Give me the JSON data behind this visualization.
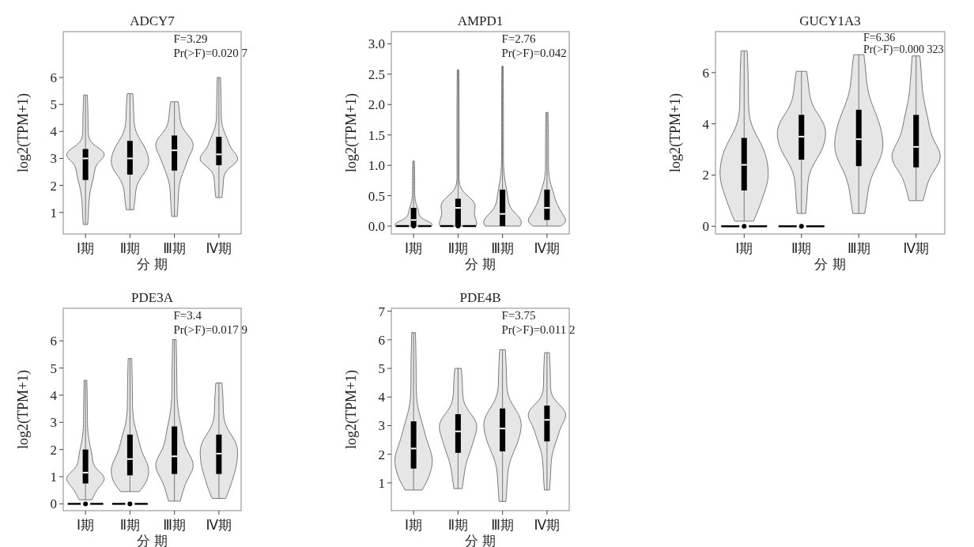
{
  "chart_data": [
    {
      "type": "box",
      "title": "ADCY7",
      "xlabel": "分 期",
      "ylabel": "log2(TPM+1)",
      "categories": [
        "Ⅰ期",
        "Ⅱ期",
        "Ⅲ期",
        "Ⅳ期"
      ],
      "ylim": [
        0.2,
        7.7
      ],
      "yticks": [
        1,
        2,
        3,
        4,
        5,
        6
      ],
      "annotations": [
        "F=3.29",
        "Pr(>F)=0.020 7"
      ],
      "series": [
        {
          "color": "#000000",
          "boxes": [
            {
              "low": 0.55,
              "q1": 2.2,
              "median": 3.0,
              "q3": 3.35,
              "high": 5.35
            },
            {
              "low": 1.1,
              "q1": 2.4,
              "median": 3.0,
              "q3": 3.65,
              "high": 5.4
            },
            {
              "low": 0.85,
              "q1": 2.55,
              "median": 3.3,
              "q3": 3.85,
              "high": 5.1
            },
            {
              "low": 1.55,
              "q1": 2.75,
              "median": 3.15,
              "q3": 3.8,
              "high": 6.0
            }
          ]
        }
      ]
    },
    {
      "type": "box",
      "title": "AMPD1",
      "xlabel": "分 期",
      "ylabel": "log2(TPM+1)",
      "categories": [
        "Ⅰ期",
        "Ⅱ期",
        "Ⅲ期",
        "Ⅳ期"
      ],
      "ylim": [
        -0.13,
        3.2
      ],
      "yticks": [
        {
          "value": 0,
          "label": "0.0"
        },
        {
          "value": 0.5,
          "label": "0.5"
        },
        {
          "value": 1,
          "label": "1.0"
        },
        {
          "value": 1.5,
          "label": "1.5"
        },
        {
          "value": 2,
          "label": "2.0"
        },
        {
          "value": 2.5,
          "label": "2.5"
        },
        {
          "value": 3,
          "label": "3.0"
        }
      ],
      "annotations": [
        "F=2.76",
        "Pr(>F)=0.042"
      ],
      "series": [
        {
          "color": "#000000",
          "boxes": [
            {
              "low": 0,
              "q1": 0,
              "median": 0.1,
              "q3": 0.3,
              "high": 1.07,
              "outliers": [
                0
              ]
            },
            {
              "low": 0,
              "q1": 0,
              "median": 0.3,
              "q3": 0.45,
              "high": 2.57,
              "outliers": [
                0
              ]
            },
            {
              "low": 0,
              "q1": 0,
              "median": 0.2,
              "q3": 0.6,
              "high": 2.63
            },
            {
              "low": 0,
              "q1": 0.1,
              "median": 0.3,
              "q3": 0.6,
              "high": 1.87
            }
          ]
        }
      ]
    },
    {
      "type": "box",
      "title": "GUCY1A3",
      "xlabel": "分 期",
      "ylabel": "log2(TPM+1)",
      "categories": [
        "Ⅰ期",
        "Ⅱ期",
        "Ⅲ期",
        "Ⅳ期"
      ],
      "ylim": [
        -0.3,
        7.6
      ],
      "yticks": [
        0,
        2,
        4,
        6
      ],
      "annotations": [
        "F=6.36",
        "Pr(>F)=0.000 323"
      ],
      "series": [
        {
          "color": "#000000",
          "boxes": [
            {
              "low": 0.2,
              "q1": 1.4,
              "median": 2.4,
              "q3": 3.45,
              "high": 6.85,
              "outliers": [
                0
              ]
            },
            {
              "low": 0.5,
              "q1": 2.6,
              "median": 3.5,
              "q3": 4.35,
              "high": 6.05,
              "outliers": [
                0
              ]
            },
            {
              "low": 0.5,
              "q1": 2.35,
              "median": 3.4,
              "q3": 4.55,
              "high": 6.7
            },
            {
              "low": 1.0,
              "q1": 2.3,
              "median": 3.1,
              "q3": 4.35,
              "high": 6.65
            }
          ]
        }
      ]
    },
    {
      "type": "box",
      "title": "PDE3A",
      "xlabel": "分 期",
      "ylabel": "log2(TPM+1)",
      "categories": [
        "Ⅰ期",
        "Ⅱ期",
        "Ⅲ期",
        "Ⅳ期"
      ],
      "ylim": [
        -0.25,
        7.2
      ],
      "yticks": [
        0,
        1,
        2,
        3,
        4,
        5,
        6
      ],
      "annotations": [
        "F=3.4",
        "Pr(>F)=0.017 9"
      ],
      "series": [
        {
          "color": "#000000",
          "boxes": [
            {
              "low": 0.15,
              "q1": 0.75,
              "median": 1.15,
              "q3": 2.0,
              "high": 4.55,
              "outliers": [
                0
              ]
            },
            {
              "low": 0.45,
              "q1": 1.05,
              "median": 1.65,
              "q3": 2.55,
              "high": 5.35,
              "outliers": [
                0
              ]
            },
            {
              "low": 0.1,
              "q1": 1.1,
              "median": 1.75,
              "q3": 2.85,
              "high": 6.05
            },
            {
              "low": 0.2,
              "q1": 1.1,
              "median": 1.85,
              "q3": 2.55,
              "high": 4.45
            }
          ]
        }
      ]
    },
    {
      "type": "box",
      "title": "PDE4B",
      "xlabel": "分 期",
      "ylabel": "log2(TPM+1)",
      "categories": [
        "Ⅰ期",
        "Ⅱ期",
        "Ⅲ期",
        "Ⅳ期"
      ],
      "ylim": [
        0.03,
        7.1
      ],
      "yticks": [
        1,
        2,
        3,
        4,
        5,
        6,
        7
      ],
      "annotations": [
        "F=3.75",
        "Pr(>F)=0.011 2"
      ],
      "series": [
        {
          "color": "#000000",
          "boxes": [
            {
              "low": 0.75,
              "q1": 1.5,
              "median": 2.2,
              "q3": 3.15,
              "high": 6.25
            },
            {
              "low": 0.8,
              "q1": 2.05,
              "median": 2.8,
              "q3": 3.4,
              "high": 5.0
            },
            {
              "low": 0.35,
              "q1": 2.1,
              "median": 2.9,
              "q3": 3.6,
              "high": 5.65
            },
            {
              "low": 0.75,
              "q1": 2.45,
              "median": 3.2,
              "q3": 3.7,
              "high": 5.55
            }
          ]
        }
      ]
    }
  ]
}
